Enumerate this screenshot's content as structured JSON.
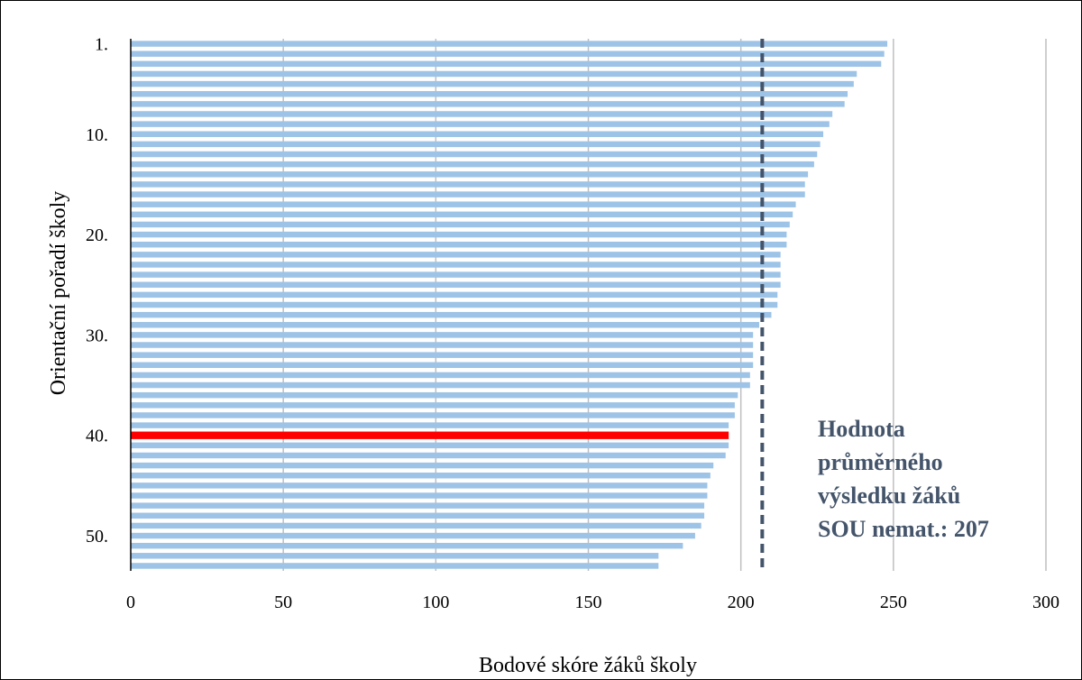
{
  "chart_data": {
    "type": "bar",
    "orientation": "horizontal",
    "xlabel": "Bodové skóre žáků školy",
    "ylabel": "Orientační pořadí školy",
    "xlim": [
      0,
      300
    ],
    "xticks": [
      "0",
      "50",
      "100",
      "150",
      "200",
      "250",
      "300"
    ],
    "y_tick_labels": [
      {
        "rank": 1,
        "label": "1."
      },
      {
        "rank": 10,
        "label": "10."
      },
      {
        "rank": 20,
        "label": "20."
      },
      {
        "rank": 30,
        "label": "30."
      },
      {
        "rank": 40,
        "label": "40."
      },
      {
        "rank": 50,
        "label": "50."
      }
    ],
    "ranks": [
      1,
      2,
      3,
      4,
      5,
      6,
      7,
      8,
      9,
      10,
      11,
      12,
      13,
      14,
      15,
      16,
      17,
      18,
      19,
      20,
      21,
      22,
      23,
      24,
      25,
      26,
      27,
      28,
      29,
      30,
      31,
      32,
      33,
      34,
      35,
      36,
      37,
      38,
      39,
      40,
      41,
      42,
      43,
      44,
      45,
      46,
      47,
      48,
      49,
      50,
      51,
      52,
      53
    ],
    "values": [
      248,
      247,
      246,
      238,
      237,
      235,
      234,
      230,
      229,
      227,
      226,
      225,
      224,
      222,
      221,
      221,
      218,
      217,
      216,
      215,
      215,
      213,
      213,
      213,
      213,
      212,
      212,
      210,
      206,
      204,
      204,
      204,
      204,
      203,
      203,
      199,
      198,
      198,
      196,
      196,
      196,
      195,
      191,
      190,
      189,
      189,
      188,
      188,
      187,
      185,
      181,
      173,
      173
    ],
    "highlight": {
      "rank": 40,
      "value": 196,
      "color": "#ff0000"
    },
    "bar_color": "#9dc3e6",
    "reference_line": {
      "value": 207,
      "color": "#44546a",
      "style": "dashed"
    },
    "annotation_lines": [
      "Hodnota",
      "průměrného",
      "výsledku žáků",
      "SOU nemat.: 207"
    ],
    "grid": "vertical"
  }
}
